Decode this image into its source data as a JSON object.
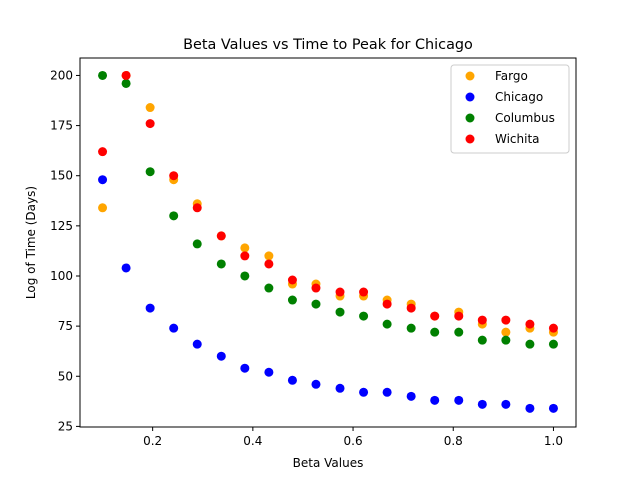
{
  "chart_data": {
    "type": "scatter",
    "title": "Beta Values vs Time to Peak for Chicago",
    "xlabel": "Beta Values",
    "ylabel": "Log of Time (Days)",
    "xlim": [
      0.055,
      1.045
    ],
    "ylim": [
      24.7,
      208.7
    ],
    "xticks": [
      0.2,
      0.4,
      0.6,
      0.8,
      1.0
    ],
    "xtick_labels": [
      "0.2",
      "0.4",
      "0.6",
      "0.8",
      "1.0"
    ],
    "yticks": [
      25,
      50,
      75,
      100,
      125,
      150,
      175,
      200
    ],
    "ytick_labels": [
      "25",
      "50",
      "75",
      "100",
      "125",
      "150",
      "175",
      "200"
    ],
    "grid": false,
    "legend_position": "top-right",
    "x": [
      0.1,
      0.147,
      0.195,
      0.242,
      0.289,
      0.337,
      0.384,
      0.432,
      0.479,
      0.526,
      0.574,
      0.621,
      0.668,
      0.716,
      0.763,
      0.811,
      0.858,
      0.905,
      0.953,
      1.0
    ],
    "series": [
      {
        "name": "Fargo",
        "color": "#ffa500",
        "values": [
          134,
          200,
          184,
          148,
          136,
          120,
          114,
          110,
          96,
          96,
          90,
          90,
          88,
          86,
          80,
          82,
          76,
          72,
          74,
          72
        ]
      },
      {
        "name": "Chicago",
        "color": "#0000ff",
        "values": [
          148,
          104,
          84,
          74,
          66,
          60,
          54,
          52,
          48,
          46,
          44,
          42,
          42,
          40,
          38,
          38,
          36,
          36,
          34,
          34
        ]
      },
      {
        "name": "Columbus",
        "color": "#008000",
        "values": [
          200,
          196,
          152,
          130,
          116,
          106,
          100,
          94,
          88,
          86,
          82,
          80,
          76,
          74,
          72,
          72,
          68,
          68,
          66,
          66
        ]
      },
      {
        "name": "Wichita",
        "color": "#ff0000",
        "values": [
          162,
          200,
          176,
          150,
          134,
          120,
          110,
          106,
          98,
          94,
          92,
          92,
          86,
          84,
          80,
          80,
          78,
          78,
          76,
          74
        ]
      }
    ]
  }
}
